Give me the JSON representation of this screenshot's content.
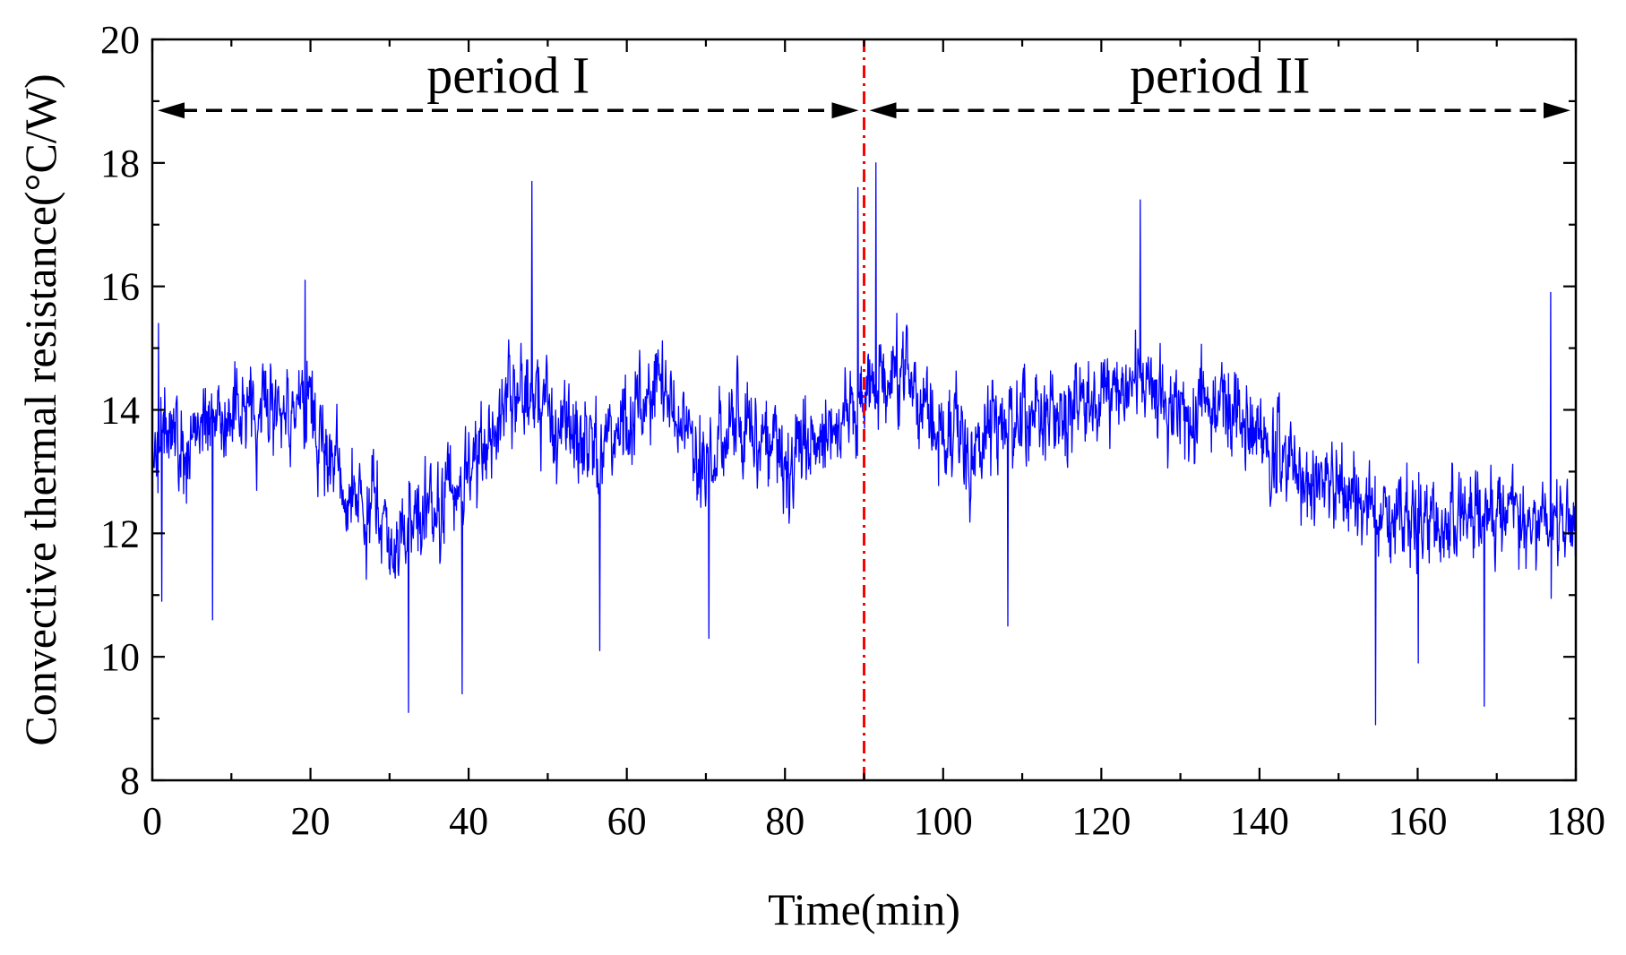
{
  "chart_data": {
    "type": "line",
    "title": "",
    "xlabel": "Time(min)",
    "ylabel": "Convective thermal resistance(°C/W)",
    "xlim": [
      0,
      180
    ],
    "ylim": [
      8,
      20
    ],
    "x_ticks": [
      0,
      20,
      40,
      60,
      80,
      100,
      120,
      140,
      160,
      180
    ],
    "y_ticks": [
      8,
      10,
      12,
      14,
      16,
      18,
      20
    ],
    "grid": false,
    "legend": "none",
    "series": [
      {
        "name": "Convective thermal resistance",
        "color": "#0000ff",
        "sample_interval_min": 0.06,
        "envelope_note": "dense noisy signal; approximate running mean and spread",
        "trend": [
          {
            "x": 0,
            "y": 13.6
          },
          {
            "x": 5,
            "y": 13.5
          },
          {
            "x": 10,
            "y": 14.1
          },
          {
            "x": 15,
            "y": 14.0
          },
          {
            "x": 20,
            "y": 13.9
          },
          {
            "x": 25,
            "y": 12.6
          },
          {
            "x": 30,
            "y": 11.9
          },
          {
            "x": 35,
            "y": 12.2
          },
          {
            "x": 40,
            "y": 12.9
          },
          {
            "x": 45,
            "y": 14.4
          },
          {
            "x": 50,
            "y": 14.0
          },
          {
            "x": 55,
            "y": 13.3
          },
          {
            "x": 60,
            "y": 13.8
          },
          {
            "x": 65,
            "y": 14.3
          },
          {
            "x": 70,
            "y": 13.0
          },
          {
            "x": 75,
            "y": 13.9
          },
          {
            "x": 80,
            "y": 13.1
          },
          {
            "x": 85,
            "y": 13.6
          },
          {
            "x": 90,
            "y": 14.3
          },
          {
            "x": 95,
            "y": 14.6
          },
          {
            "x": 100,
            "y": 13.6
          },
          {
            "x": 105,
            "y": 13.4
          },
          {
            "x": 110,
            "y": 14.0
          },
          {
            "x": 115,
            "y": 13.9
          },
          {
            "x": 120,
            "y": 14.1
          },
          {
            "x": 125,
            "y": 14.5
          },
          {
            "x": 130,
            "y": 14.0
          },
          {
            "x": 135,
            "y": 14.1
          },
          {
            "x": 140,
            "y": 13.6
          },
          {
            "x": 145,
            "y": 13.0
          },
          {
            "x": 150,
            "y": 12.8
          },
          {
            "x": 155,
            "y": 12.4
          },
          {
            "x": 160,
            "y": 12.3
          },
          {
            "x": 165,
            "y": 12.2
          },
          {
            "x": 170,
            "y": 12.5
          },
          {
            "x": 175,
            "y": 12.1
          },
          {
            "x": 180,
            "y": 12.0
          }
        ],
        "noise_sd": 0.85,
        "peaks": [
          {
            "x": 0.8,
            "y": 15.4
          },
          {
            "x": 1.2,
            "y": 10.9
          },
          {
            "x": 7.6,
            "y": 10.6
          },
          {
            "x": 19.3,
            "y": 16.1
          },
          {
            "x": 32.4,
            "y": 9.1
          },
          {
            "x": 39.2,
            "y": 9.4
          },
          {
            "x": 48.0,
            "y": 17.7
          },
          {
            "x": 56.6,
            "y": 10.1
          },
          {
            "x": 70.4,
            "y": 10.3
          },
          {
            "x": 89.2,
            "y": 17.6
          },
          {
            "x": 91.5,
            "y": 18.0
          },
          {
            "x": 108.2,
            "y": 10.5
          },
          {
            "x": 124.9,
            "y": 17.4
          },
          {
            "x": 154.7,
            "y": 8.9
          },
          {
            "x": 160.1,
            "y": 9.9
          },
          {
            "x": 168.4,
            "y": 9.2
          },
          {
            "x": 176.8,
            "y": 15.9
          }
        ]
      }
    ],
    "annotations": [
      {
        "type": "vline",
        "x": 90,
        "color": "#ff0000",
        "style": "dash-dot"
      },
      {
        "type": "double-arrow",
        "x_from": 0,
        "x_to": 90,
        "y": 18.85,
        "color": "#000000",
        "style": "dashed"
      },
      {
        "type": "double-arrow",
        "x_from": 90,
        "x_to": 180,
        "y": 18.85,
        "color": "#000000",
        "style": "dashed"
      }
    ],
    "period_labels": [
      {
        "text": "period I",
        "x": 45,
        "y": 19.4
      },
      {
        "text": "period II",
        "x": 135,
        "y": 19.4
      }
    ]
  }
}
